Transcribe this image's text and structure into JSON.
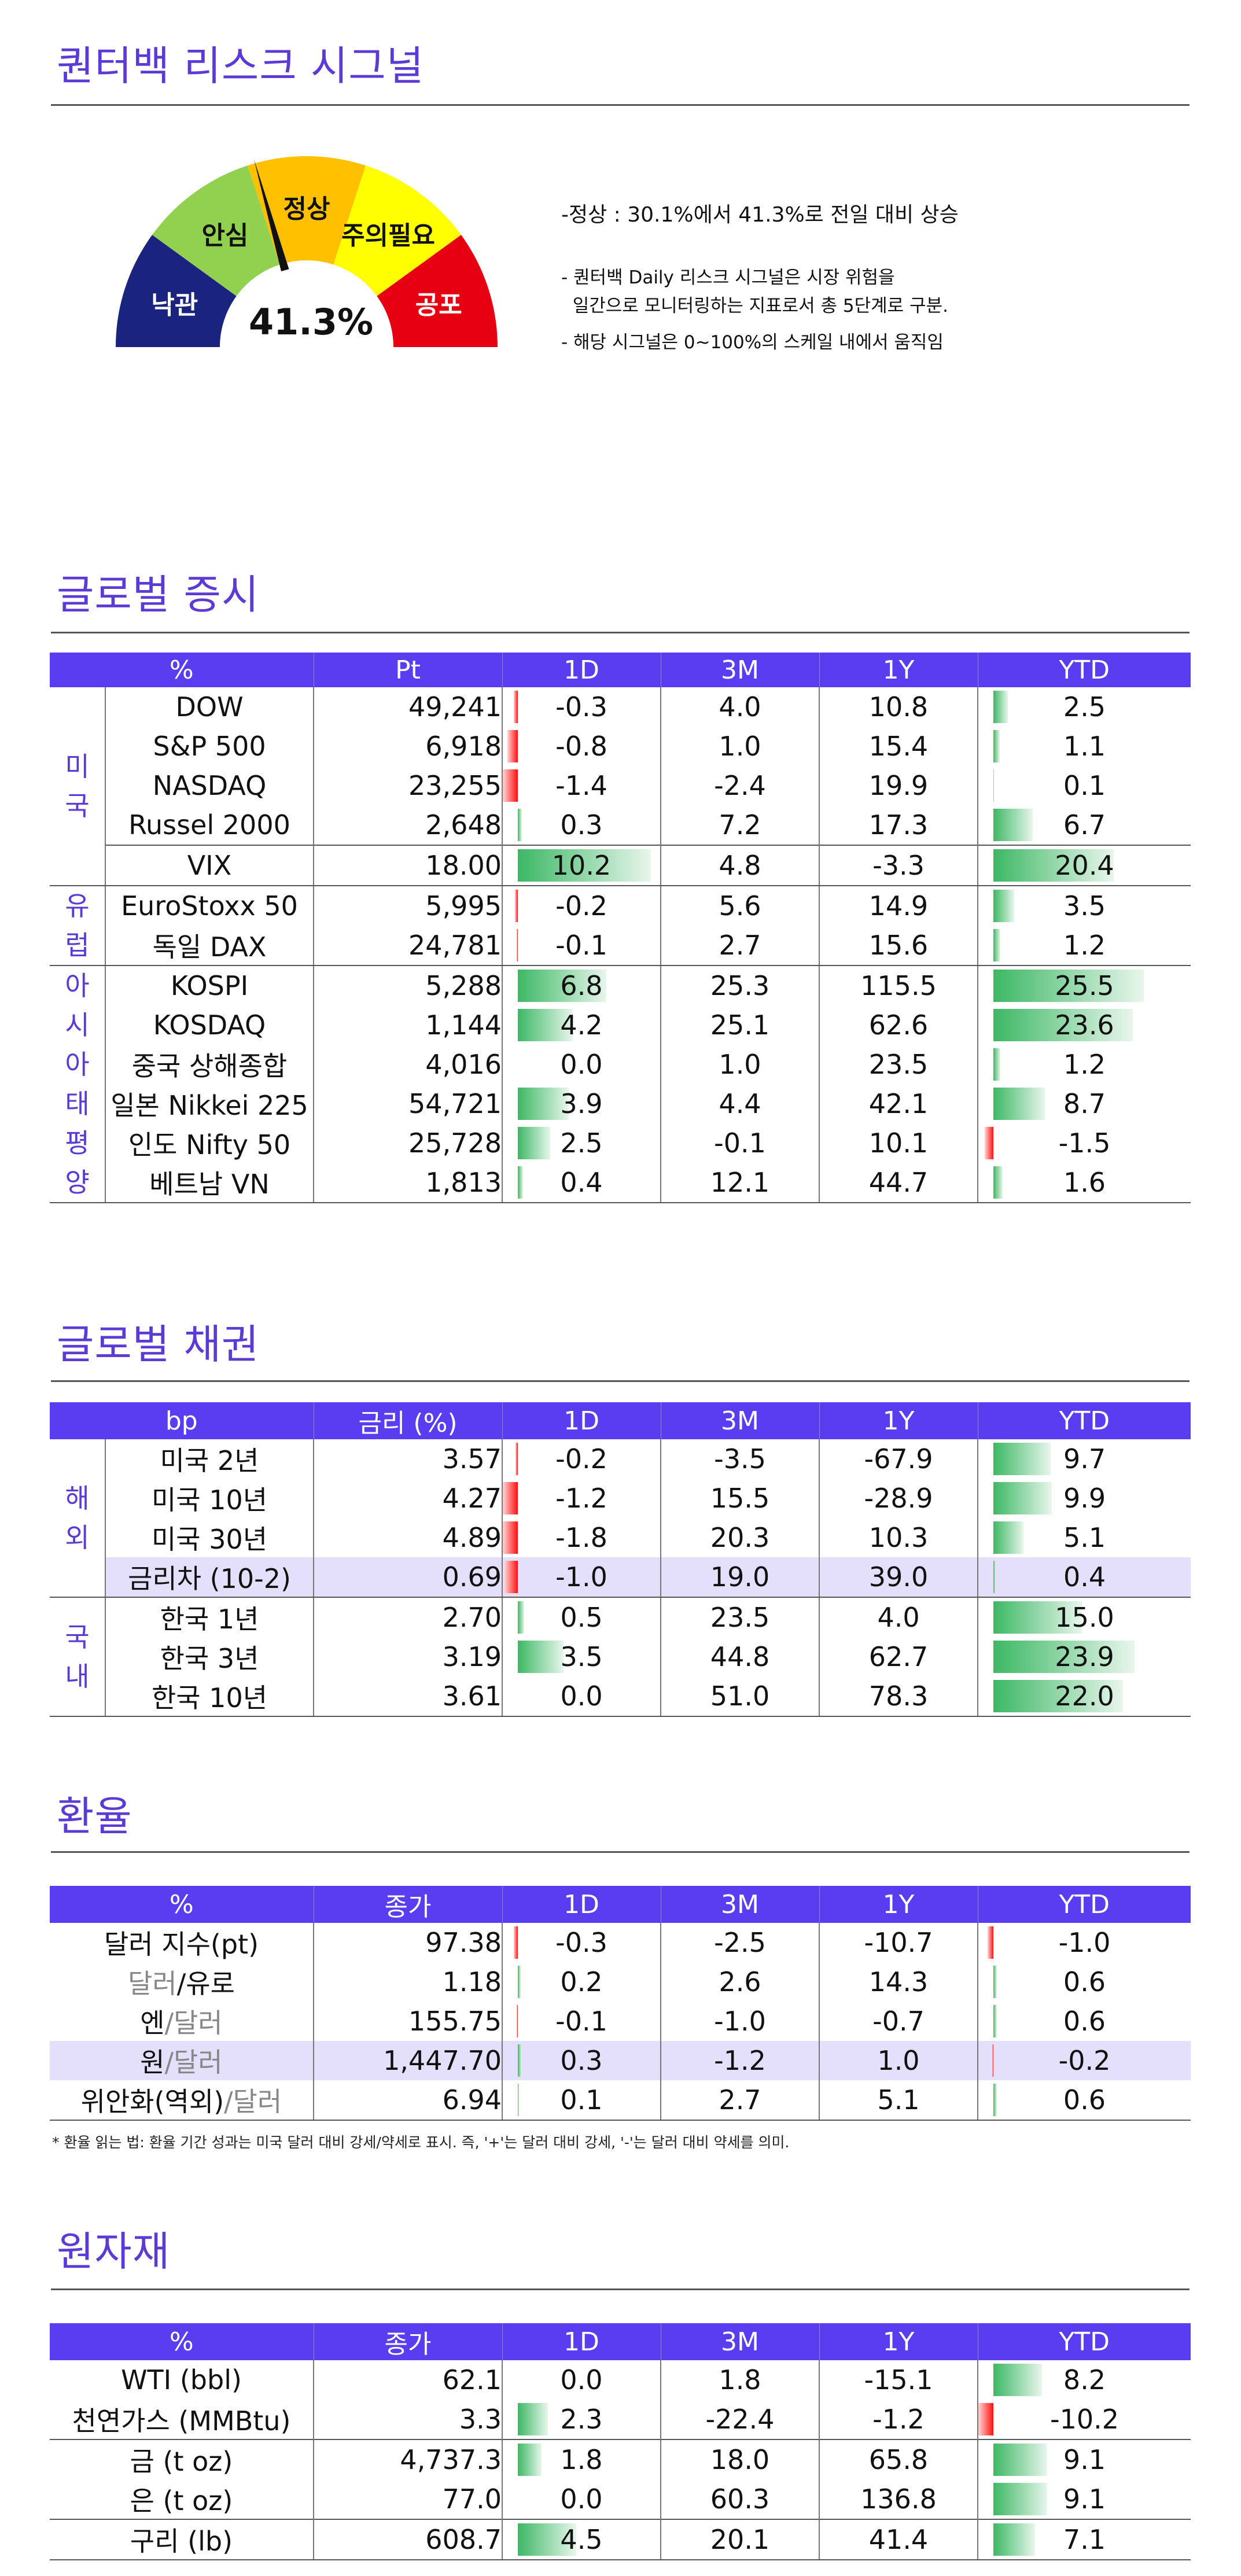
{
  "risk": {
    "title": "퀀터백 리스크 시그널",
    "levels": [
      "낙관",
      "안심",
      "정상",
      "주의필요",
      "공포"
    ],
    "level_colors": [
      "#1a237e",
      "#92d050",
      "#ffc000",
      "#ffff00",
      "#e60012"
    ],
    "value_label": "41.3%",
    "value_pct": 41.3,
    "note_main": "-정상 : 30.1%에서 41.3%로 전일 대비 상승",
    "note_1a": "- 퀀터백 Daily 리스크 시그널은 시장 위험을",
    "note_1b": "  일간으로 모니터링하는 지표로서 총 5단계로 구분.",
    "note_2": "- 해당 시그널은 0~100%의 스케일 내에서 움직임"
  },
  "equity": {
    "title": "글로벌 증시",
    "headers": [
      "%",
      "Pt",
      "1D",
      "3M",
      "1Y",
      "YTD"
    ],
    "groups": [
      {
        "label": "미\n국",
        "rows": [
          {
            "name": "DOW",
            "value": "49,241",
            "d1": -0.3,
            "m3": "4.0",
            "y1": "10.8",
            "ytd": 2.5
          },
          {
            "name": "S&P 500",
            "value": "6,918",
            "d1": -0.8,
            "m3": "1.0",
            "y1": "15.4",
            "ytd": 1.1
          },
          {
            "name": "NASDAQ",
            "value": "23,255",
            "d1": -1.4,
            "m3": "-2.4",
            "y1": "19.9",
            "ytd": 0.1
          },
          {
            "name": "Russel 2000",
            "value": "2,648",
            "d1": 0.3,
            "m3": "7.2",
            "y1": "17.3",
            "ytd": 6.7
          },
          {
            "name": "VIX",
            "value": "18.00",
            "d1": 10.2,
            "m3": "4.8",
            "y1": "-3.3",
            "ytd": 20.4,
            "sep_above": true
          }
        ]
      },
      {
        "label": "유\n럽",
        "rows": [
          {
            "name": "EuroStoxx 50",
            "value": "5,995",
            "d1": -0.2,
            "m3": "5.6",
            "y1": "14.9",
            "ytd": 3.5
          },
          {
            "name": "독일 DAX",
            "value": "24,781",
            "d1": -0.1,
            "m3": "2.7",
            "y1": "15.6",
            "ytd": 1.2
          }
        ]
      },
      {
        "label": "아\n시\n아\n태\n평\n양",
        "rows": [
          {
            "name": "KOSPI",
            "value": "5,288",
            "d1": 6.8,
            "m3": "25.3",
            "y1": "115.5",
            "ytd": 25.5
          },
          {
            "name": "KOSDAQ",
            "value": "1,144",
            "d1": 4.2,
            "m3": "25.1",
            "y1": "62.6",
            "ytd": 23.6
          },
          {
            "name": "중국 상해종합",
            "value": "4,016",
            "d1": 0.0,
            "m3": "1.0",
            "y1": "23.5",
            "ytd": 1.2
          },
          {
            "name": "일본 Nikkei 225",
            "value": "54,721",
            "d1": 3.9,
            "m3": "4.4",
            "y1": "42.1",
            "ytd": 8.7
          },
          {
            "name": "인도 Nifty 50",
            "value": "25,728",
            "d1": 2.5,
            "m3": "-0.1",
            "y1": "10.1",
            "ytd": -1.5
          },
          {
            "name": "베트남 VN",
            "value": "1,813",
            "d1": 0.4,
            "m3": "12.1",
            "y1": "44.7",
            "ytd": 1.6
          }
        ]
      }
    ]
  },
  "bonds": {
    "title": "글로벌 채권",
    "headers": [
      "bp",
      "금리 (%)",
      "1D",
      "3M",
      "1Y",
      "YTD"
    ],
    "groups": [
      {
        "label": "해\n외",
        "rows": [
          {
            "name": "미국 2년",
            "value": "3.57",
            "d1": -0.2,
            "m3": "-3.5",
            "y1": "-67.9",
            "ytd": 9.7
          },
          {
            "name": "미국 10년",
            "value": "4.27",
            "d1": -1.2,
            "m3": "15.5",
            "y1": "-28.9",
            "ytd": 9.9
          },
          {
            "name": "미국 30년",
            "value": "4.89",
            "d1": -1.8,
            "m3": "20.3",
            "y1": "10.3",
            "ytd": 5.1
          },
          {
            "name": "금리차 (10-2)",
            "value": "0.69",
            "d1": -1.0,
            "m3": "19.0",
            "y1": "39.0",
            "ytd": 0.4,
            "highlight": true
          }
        ]
      },
      {
        "label": "국\n내",
        "rows": [
          {
            "name": "한국 1년",
            "value": "2.70",
            "d1": 0.5,
            "m3": "23.5",
            "y1": "4.0",
            "ytd": 15.0
          },
          {
            "name": "한국 3년",
            "value": "3.19",
            "d1": 3.5,
            "m3": "44.8",
            "y1": "62.7",
            "ytd": 23.9
          },
          {
            "name": "한국 10년",
            "value": "3.61",
            "d1": 0.0,
            "m3": "51.0",
            "y1": "78.3",
            "ytd": 22.0
          }
        ]
      }
    ]
  },
  "fx": {
    "title": "환율",
    "headers": [
      "%",
      "종가",
      "1D",
      "3M",
      "1Y",
      "YTD"
    ],
    "rows": [
      {
        "name_a": "달러 지수(pt)",
        "name_b": "",
        "value": "97.38",
        "d1": -0.3,
        "m3": "-2.5",
        "y1": "-10.7",
        "ytd": -1.0
      },
      {
        "name_a": "달러",
        "name_b": "/유로",
        "value": "1.18",
        "d1": 0.2,
        "m3": "2.6",
        "y1": "14.3",
        "ytd": 0.6,
        "gray_a": true
      },
      {
        "name_a": "엔",
        "name_b": "/달러",
        "value": "155.75",
        "d1": -0.1,
        "m3": "-1.0",
        "y1": "-0.7",
        "ytd": 0.6,
        "gray_b": true
      },
      {
        "name_a": "원",
        "name_b": "/달러",
        "value": "1,447.70",
        "d1": 0.3,
        "m3": "-1.2",
        "y1": "1.0",
        "ytd": -0.2,
        "gray_b": true,
        "highlight": true
      },
      {
        "name_a": "위안화(역외)",
        "name_b": "/달러",
        "value": "6.94",
        "d1": 0.1,
        "m3": "2.7",
        "y1": "5.1",
        "ytd": 0.6,
        "gray_b": true
      }
    ],
    "footnote": "* 환율 읽는 법: 환율 기간 성과는 미국 달러 대비 강세/약세로 표시. 즉, '+'는 달러 대비 강세, '-'는 달러 대비 약세를 의미."
  },
  "commodities": {
    "title": "원자재",
    "headers": [
      "%",
      "종가",
      "1D",
      "3M",
      "1Y",
      "YTD"
    ],
    "rows": [
      {
        "name": "WTI (bbl)",
        "value": "62.1",
        "d1": 0.0,
        "m3": "1.8",
        "y1": "-15.1",
        "ytd": 8.2
      },
      {
        "name": "천연가스 (MMBtu)",
        "value": "3.3",
        "d1": 2.3,
        "m3": "-22.4",
        "y1": "-1.2",
        "ytd": -10.2
      },
      {
        "name": "금 (t oz)",
        "value": "4,737.3",
        "d1": 1.8,
        "m3": "18.0",
        "y1": "65.8",
        "ytd": 9.1,
        "sep_above": true
      },
      {
        "name": "은 (t oz)",
        "value": "77.0",
        "d1": 0.0,
        "m3": "60.3",
        "y1": "136.8",
        "ytd": 9.1
      },
      {
        "name": "구리 (lb)",
        "value": "608.7",
        "d1": 4.5,
        "m3": "20.1",
        "y1": "41.4",
        "ytd": 7.1,
        "sep_above": true
      }
    ]
  }
}
